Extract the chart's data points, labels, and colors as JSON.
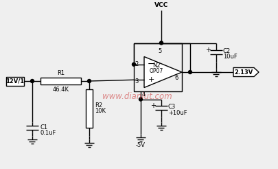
{
  "bg_color": "#efefef",
  "line_color": "#000000",
  "watermark_color": "#cc3333",
  "watermark_text": "www.dianlut.com",
  "components": {
    "input_label": "12V/1",
    "output_label": "2.13V",
    "R1": "R1",
    "R1_val": "46.4K",
    "R2": "R2",
    "R2_val": "10K",
    "C1": "C1",
    "C1_val": "0.1uF",
    "C2": "C2",
    "C2_val": "10uF",
    "C3": "C3",
    "C3_val": "+10uF",
    "opamp_n": "N2",
    "opamp_ic": "OP07",
    "vcc": "VCC",
    "neg5v": "-5V",
    "pin2": "2",
    "pin3": "3",
    "pin4": "4",
    "pin5": "5",
    "pin6": "6"
  }
}
